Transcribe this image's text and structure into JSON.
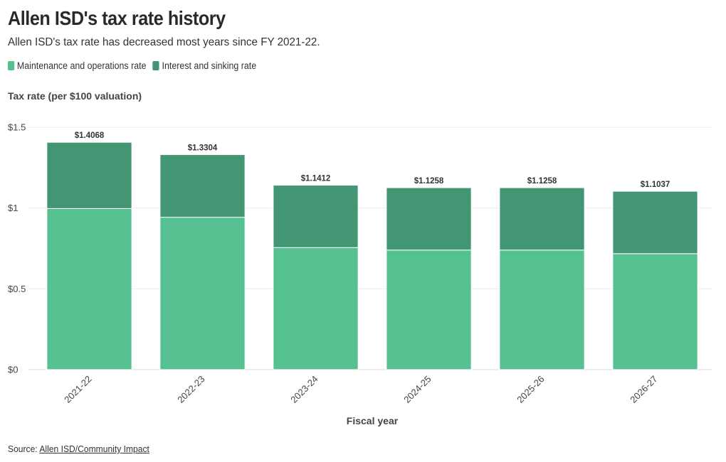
{
  "header": {
    "title": "Allen ISD's tax rate history",
    "subtitle": "Allen ISD's tax rate has decreased most years since FY 2021-22."
  },
  "footer": {
    "source_prefix": "Source: ",
    "source_link": "Allen ISD/Community Impact"
  },
  "chart_data": {
    "type": "bar",
    "stacked": true,
    "title": "Allen ISD's tax rate history",
    "subtitle": "Allen ISD's tax rate has decreased most years since FY 2021-22.",
    "xlabel": "Fiscal year",
    "ylabel": "Tax rate (per $100 valuation)",
    "categories": [
      "2021-22",
      "2022-23",
      "2023-24",
      "2024-25",
      "2025-26",
      "2026-27"
    ],
    "series": [
      {
        "name": "Maintenance and operations rate",
        "color": "#55c191",
        "values": [
          0.997,
          0.9429,
          0.7552,
          0.7398,
          0.7398,
          0.7177
        ]
      },
      {
        "name": "Interest and sinking rate",
        "color": "#429673",
        "values": [
          0.4098,
          0.3875,
          0.386,
          0.386,
          0.386,
          0.386
        ]
      }
    ],
    "totals": [
      1.4068,
      1.3304,
      1.1412,
      1.1258,
      1.1258,
      1.1037
    ],
    "total_labels": [
      "$1.4068",
      "$1.3304",
      "$1.1412",
      "$1.1258",
      "$1.1258",
      "$1.1037"
    ],
    "yticks": [
      0,
      0.5,
      1,
      1.5
    ],
    "ytick_labels": [
      "$0",
      "$0.5",
      "$1",
      "$1.5"
    ],
    "ylim": [
      0,
      1.5
    ],
    "grid": true,
    "legend_position": "top-left"
  }
}
